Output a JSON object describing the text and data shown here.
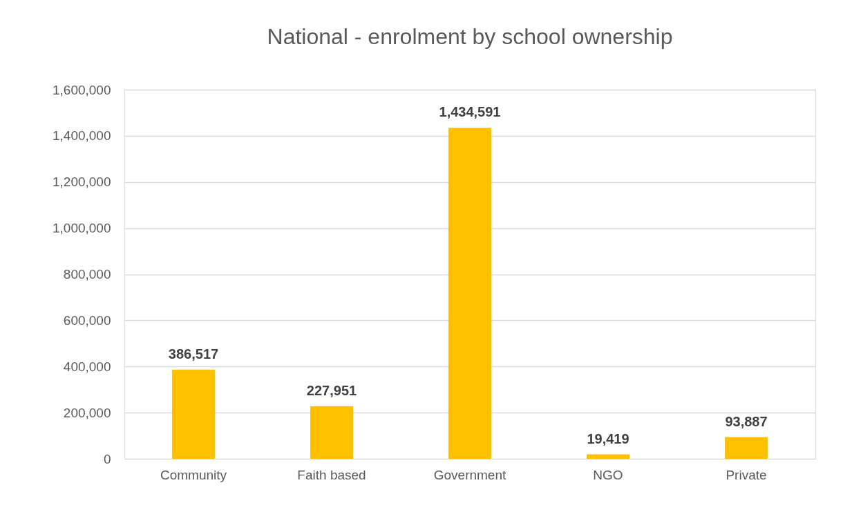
{
  "chart_data": {
    "type": "bar",
    "title": "National - enrolment by school ownership",
    "categories": [
      "Community",
      "Faith based",
      "Government",
      "NGO",
      "Private"
    ],
    "values": [
      386517,
      227951,
      1434591,
      19419,
      93887
    ],
    "color": "#ffc000",
    "value_labels": [
      "386,517",
      "227,951",
      "1,434,591",
      "19,419",
      "93,887"
    ],
    "ylim": [
      0,
      1600000
    ],
    "yticks": [
      0,
      {
        "value": 200000,
        "label": "200,000"
      },
      {
        "value": 400000,
        "label": "400,000"
      },
      {
        "value": 600000,
        "label": "600,000"
      },
      {
        "value": 800000,
        "label": "800,000"
      },
      {
        "value": 1000000,
        "label": "1,000,000"
      },
      {
        "value": 1200000,
        "label": "1,200,000"
      },
      {
        "value": 1400000,
        "label": "1,400,000"
      },
      {
        "value": 1600000,
        "label": "1,600,000"
      }
    ],
    "grid": "y"
  }
}
